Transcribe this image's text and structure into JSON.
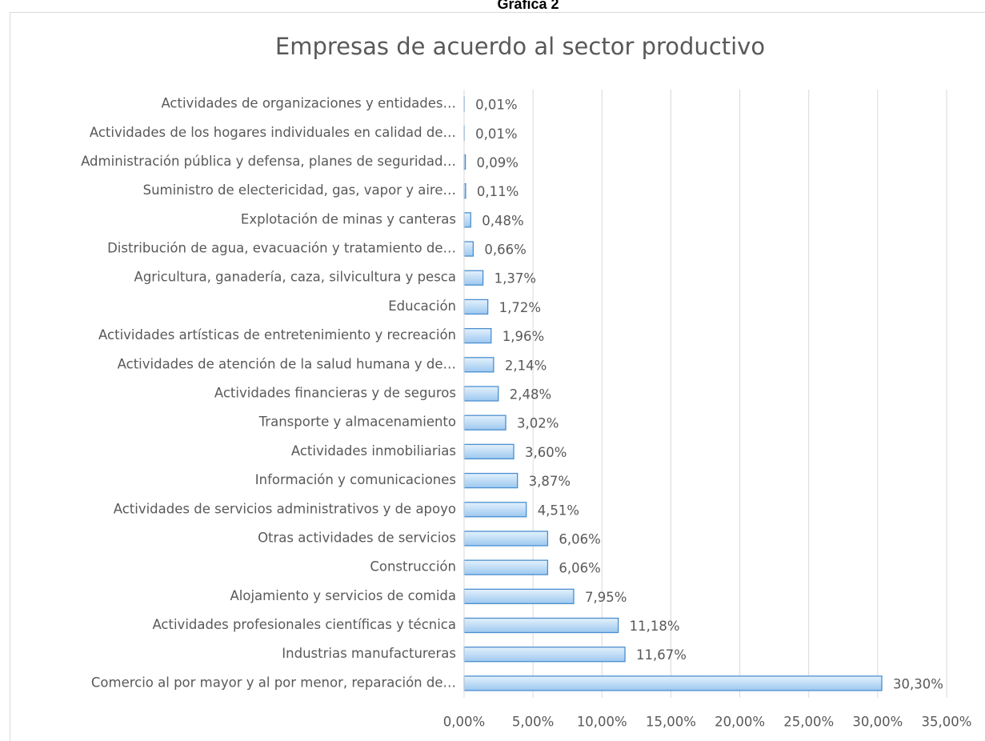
{
  "caption": "Gráfica 2",
  "chart_data": {
    "type": "hbar",
    "title": "Empresas de acuerdo al sector productivo",
    "categories": [
      "Actividades de organizaciones y entidades…",
      "Actividades de los hogares individuales en calidad de…",
      "Administración pública y defensa, planes de seguridad…",
      "Suministro de electericidad, gas, vapor y aire…",
      "Explotación de minas y canteras",
      "Distribución de agua, evacuación y tratamiento de…",
      "Agricultura, ganadería, caza, silvicultura y pesca",
      "Educación",
      "Actividades artísticas de entretenimiento y recreación",
      "Actividades de atención de la salud humana y de…",
      "Actividades financieras y de seguros",
      "Transporte y almacenamiento",
      "Actividades inmobiliarias",
      "Información y comunicaciones",
      "Actividades de servicios administrativos y de apoyo",
      "Otras actividades de servicios",
      "Construcción",
      "Alojamiento y servicios de comida",
      "Actividades profesionales científicas  y técnica",
      "Industrias manufactureras",
      "Comercio al por mayor y al por menor, reparación de…"
    ],
    "values": [
      0.01,
      0.01,
      0.09,
      0.11,
      0.48,
      0.66,
      1.37,
      1.72,
      1.96,
      2.14,
      2.48,
      3.02,
      3.6,
      3.87,
      4.51,
      6.06,
      6.06,
      7.95,
      11.18,
      11.67,
      30.3
    ],
    "value_labels": [
      "0,01%",
      "0,01%",
      "0,09%",
      "0,11%",
      "0,48%",
      "0,66%",
      "1,37%",
      "1,72%",
      "1,96%",
      "2,14%",
      "2,48%",
      "3,02%",
      "3,60%",
      "3,87%",
      "4,51%",
      "6,06%",
      "6,06%",
      "7,95%",
      "11,18%",
      "11,67%",
      "30,30%"
    ],
    "color": "#9dc3e6",
    "xlim": [
      0,
      35
    ],
    "xticks": [
      {
        "value": 0,
        "label": "0,00%"
      },
      {
        "value": 5,
        "label": "5,00%"
      },
      {
        "value": 10,
        "label": "10,00%"
      },
      {
        "value": 15,
        "label": "15,00%"
      },
      {
        "value": 20,
        "label": "20,00%"
      },
      {
        "value": 25,
        "label": "25,00%"
      },
      {
        "value": 30,
        "label": "30,00%"
      },
      {
        "value": 35,
        "label": "35,00%"
      }
    ],
    "grid": true
  }
}
